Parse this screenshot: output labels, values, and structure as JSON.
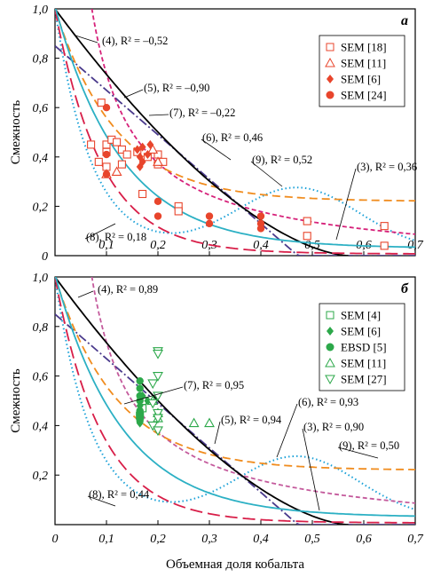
{
  "chart_data": [
    {
      "type": "scatter",
      "panel_label": "а",
      "xlabel": "",
      "ylabel": "Смежность",
      "xlim": [
        0,
        0.7
      ],
      "ylim": [
        0,
        1.0
      ],
      "x_ticks": [
        "0,1",
        "0,2",
        "0,3",
        "0,4",
        "0,5",
        "0,6",
        "0,7"
      ],
      "y_ticks": [
        "0",
        "0,2",
        "0,4",
        "0,6",
        "0,8",
        "1,0"
      ],
      "legend_position": "top-right",
      "series": [
        {
          "name": "SEM [18]",
          "marker": "square-open",
          "color": "#e8452c",
          "points": [
            [
              0.07,
              0.45
            ],
            [
              0.085,
              0.38
            ],
            [
              0.09,
              0.62
            ],
            [
              0.1,
              0.45
            ],
            [
              0.1,
              0.42
            ],
            [
              0.1,
              0.36
            ],
            [
              0.11,
              0.47
            ],
            [
              0.12,
              0.46
            ],
            [
              0.13,
              0.43
            ],
            [
              0.13,
              0.37
            ],
            [
              0.14,
              0.41
            ],
            [
              0.16,
              0.42
            ],
            [
              0.17,
              0.25
            ],
            [
              0.18,
              0.4
            ],
            [
              0.2,
              0.37
            ],
            [
              0.2,
              0.41
            ],
            [
              0.21,
              0.38
            ],
            [
              0.24,
              0.2
            ],
            [
              0.24,
              0.18
            ],
            [
              0.49,
              0.14
            ],
            [
              0.49,
              0.08
            ],
            [
              0.64,
              0.12
            ],
            [
              0.64,
              0.04
            ]
          ]
        },
        {
          "name": "SEM [11]",
          "marker": "triangle-up-open",
          "color": "#e8452c",
          "points": [
            [
              0.1,
              0.33
            ],
            [
              0.12,
              0.34
            ],
            [
              0.19,
              0.43
            ],
            [
              0.2,
              0.38
            ]
          ]
        },
        {
          "name": "SEM [6]",
          "marker": "diamond-filled",
          "color": "#e8452c",
          "points": [
            [
              0.16,
              0.43
            ],
            [
              0.165,
              0.4
            ],
            [
              0.17,
              0.38
            ],
            [
              0.165,
              0.36
            ],
            [
              0.18,
              0.41
            ],
            [
              0.17,
              0.44
            ],
            [
              0.185,
              0.45
            ]
          ]
        },
        {
          "name": "SEM [24]",
          "marker": "circle-filled",
          "color": "#e8452c",
          "points": [
            [
              0.1,
              0.6
            ],
            [
              0.1,
              0.41
            ],
            [
              0.1,
              0.33
            ],
            [
              0.2,
              0.22
            ],
            [
              0.2,
              0.16
            ],
            [
              0.3,
              0.16
            ],
            [
              0.3,
              0.13
            ],
            [
              0.4,
              0.16
            ],
            [
              0.4,
              0.13
            ],
            [
              0.4,
              0.11
            ]
          ]
        }
      ],
      "curves": [
        {
          "label": "(3), R² = 0,36",
          "id": "3",
          "color": "#1ba1d8",
          "style": "dotted"
        },
        {
          "label": "(4), R² = –0,52",
          "id": "4",
          "color": "#d6227a",
          "style": "short-dash"
        },
        {
          "label": "(5), R² = –0,90",
          "id": "5",
          "color": "#4a3a8c",
          "style": "dash-dot"
        },
        {
          "label": "(6), R² = 0,46",
          "id": "6",
          "color": "#f08c1e",
          "style": "dashed"
        },
        {
          "label": "(7), R² = –0,22",
          "id": "7",
          "color": "#000000",
          "style": "solid"
        },
        {
          "label": "(8), R² = 0,18",
          "id": "8",
          "color": "#d81e48",
          "style": "long-dash"
        },
        {
          "label": "(9), R² = 0,52",
          "id": "9",
          "color": "#2cb0c4",
          "style": "solid"
        }
      ]
    },
    {
      "type": "scatter",
      "panel_label": "б",
      "xlabel": "Объемная доля кобальта",
      "ylabel": "Смежность",
      "xlim": [
        0,
        0.7
      ],
      "ylim": [
        0,
        1.0
      ],
      "x_ticks": [
        "0",
        "0,1",
        "0,2",
        "0,3",
        "0,4",
        "0,5",
        "0,6",
        "0,7"
      ],
      "y_ticks": [
        "0,2",
        "0,4",
        "0,6",
        "0,8",
        "1,0"
      ],
      "legend_position": "top-right",
      "series": [
        {
          "name": "SEM [4]",
          "marker": "square-open",
          "color": "#2ca84a",
          "points": [
            [
              0.17,
              0.5
            ],
            [
              0.17,
              0.47
            ],
            [
              0.165,
              0.44
            ]
          ]
        },
        {
          "name": "SEM [6]",
          "marker": "diamond-filled",
          "color": "#2ca84a",
          "points": [
            [
              0.165,
              0.48
            ],
            [
              0.165,
              0.45
            ],
            [
              0.165,
              0.43
            ],
            [
              0.165,
              0.41
            ],
            [
              0.17,
              0.52
            ],
            [
              0.18,
              0.5
            ]
          ]
        },
        {
          "name": "EBSD [5]",
          "marker": "circle-filled",
          "color": "#2ca84a",
          "points": [
            [
              0.165,
              0.58
            ],
            [
              0.165,
              0.55
            ],
            [
              0.165,
              0.52
            ],
            [
              0.165,
              0.5
            ],
            [
              0.165,
              0.46
            ],
            [
              0.165,
              0.44
            ],
            [
              0.165,
              0.42
            ]
          ]
        },
        {
          "name": "SEM [11]",
          "marker": "triangle-up-open",
          "color": "#2ca84a",
          "points": [
            [
              0.19,
              0.5
            ],
            [
              0.2,
              0.45
            ],
            [
              0.27,
              0.41
            ],
            [
              0.3,
              0.41
            ],
            [
              0.2,
              0.43
            ]
          ]
        },
        {
          "name": "SEM [27]",
          "marker": "triangle-down-open",
          "color": "#2ca84a",
          "points": [
            [
              0.2,
              0.7
            ],
            [
              0.2,
              0.69
            ],
            [
              0.2,
              0.6
            ],
            [
              0.19,
              0.57
            ],
            [
              0.2,
              0.52
            ],
            [
              0.19,
              0.49
            ],
            [
              0.2,
              0.45
            ],
            [
              0.2,
              0.43
            ],
            [
              0.19,
              0.4
            ],
            [
              0.2,
              0.38
            ]
          ]
        }
      ],
      "curves": [
        {
          "label": "(3), R² = 0,90",
          "id": "3",
          "color": "#1ba1d8",
          "style": "dotted"
        },
        {
          "label": "(4), R² = 0,89",
          "id": "4",
          "color": "#c45a9c",
          "style": "short-dash"
        },
        {
          "label": "(5), R² = 0,94",
          "id": "5",
          "color": "#4a3a8c",
          "style": "dash-dot"
        },
        {
          "label": "(6), R² = 0,93",
          "id": "6",
          "color": "#f08c1e",
          "style": "dashed"
        },
        {
          "label": "(7), R² = 0,95",
          "id": "7",
          "color": "#000000",
          "style": "solid"
        },
        {
          "label": "(8), R² = 0,44",
          "id": "8",
          "color": "#d81e48",
          "style": "long-dash"
        },
        {
          "label": "(9), R² = 0,50",
          "id": "9",
          "color": "#2cb0c4",
          "style": "solid"
        }
      ]
    }
  ]
}
